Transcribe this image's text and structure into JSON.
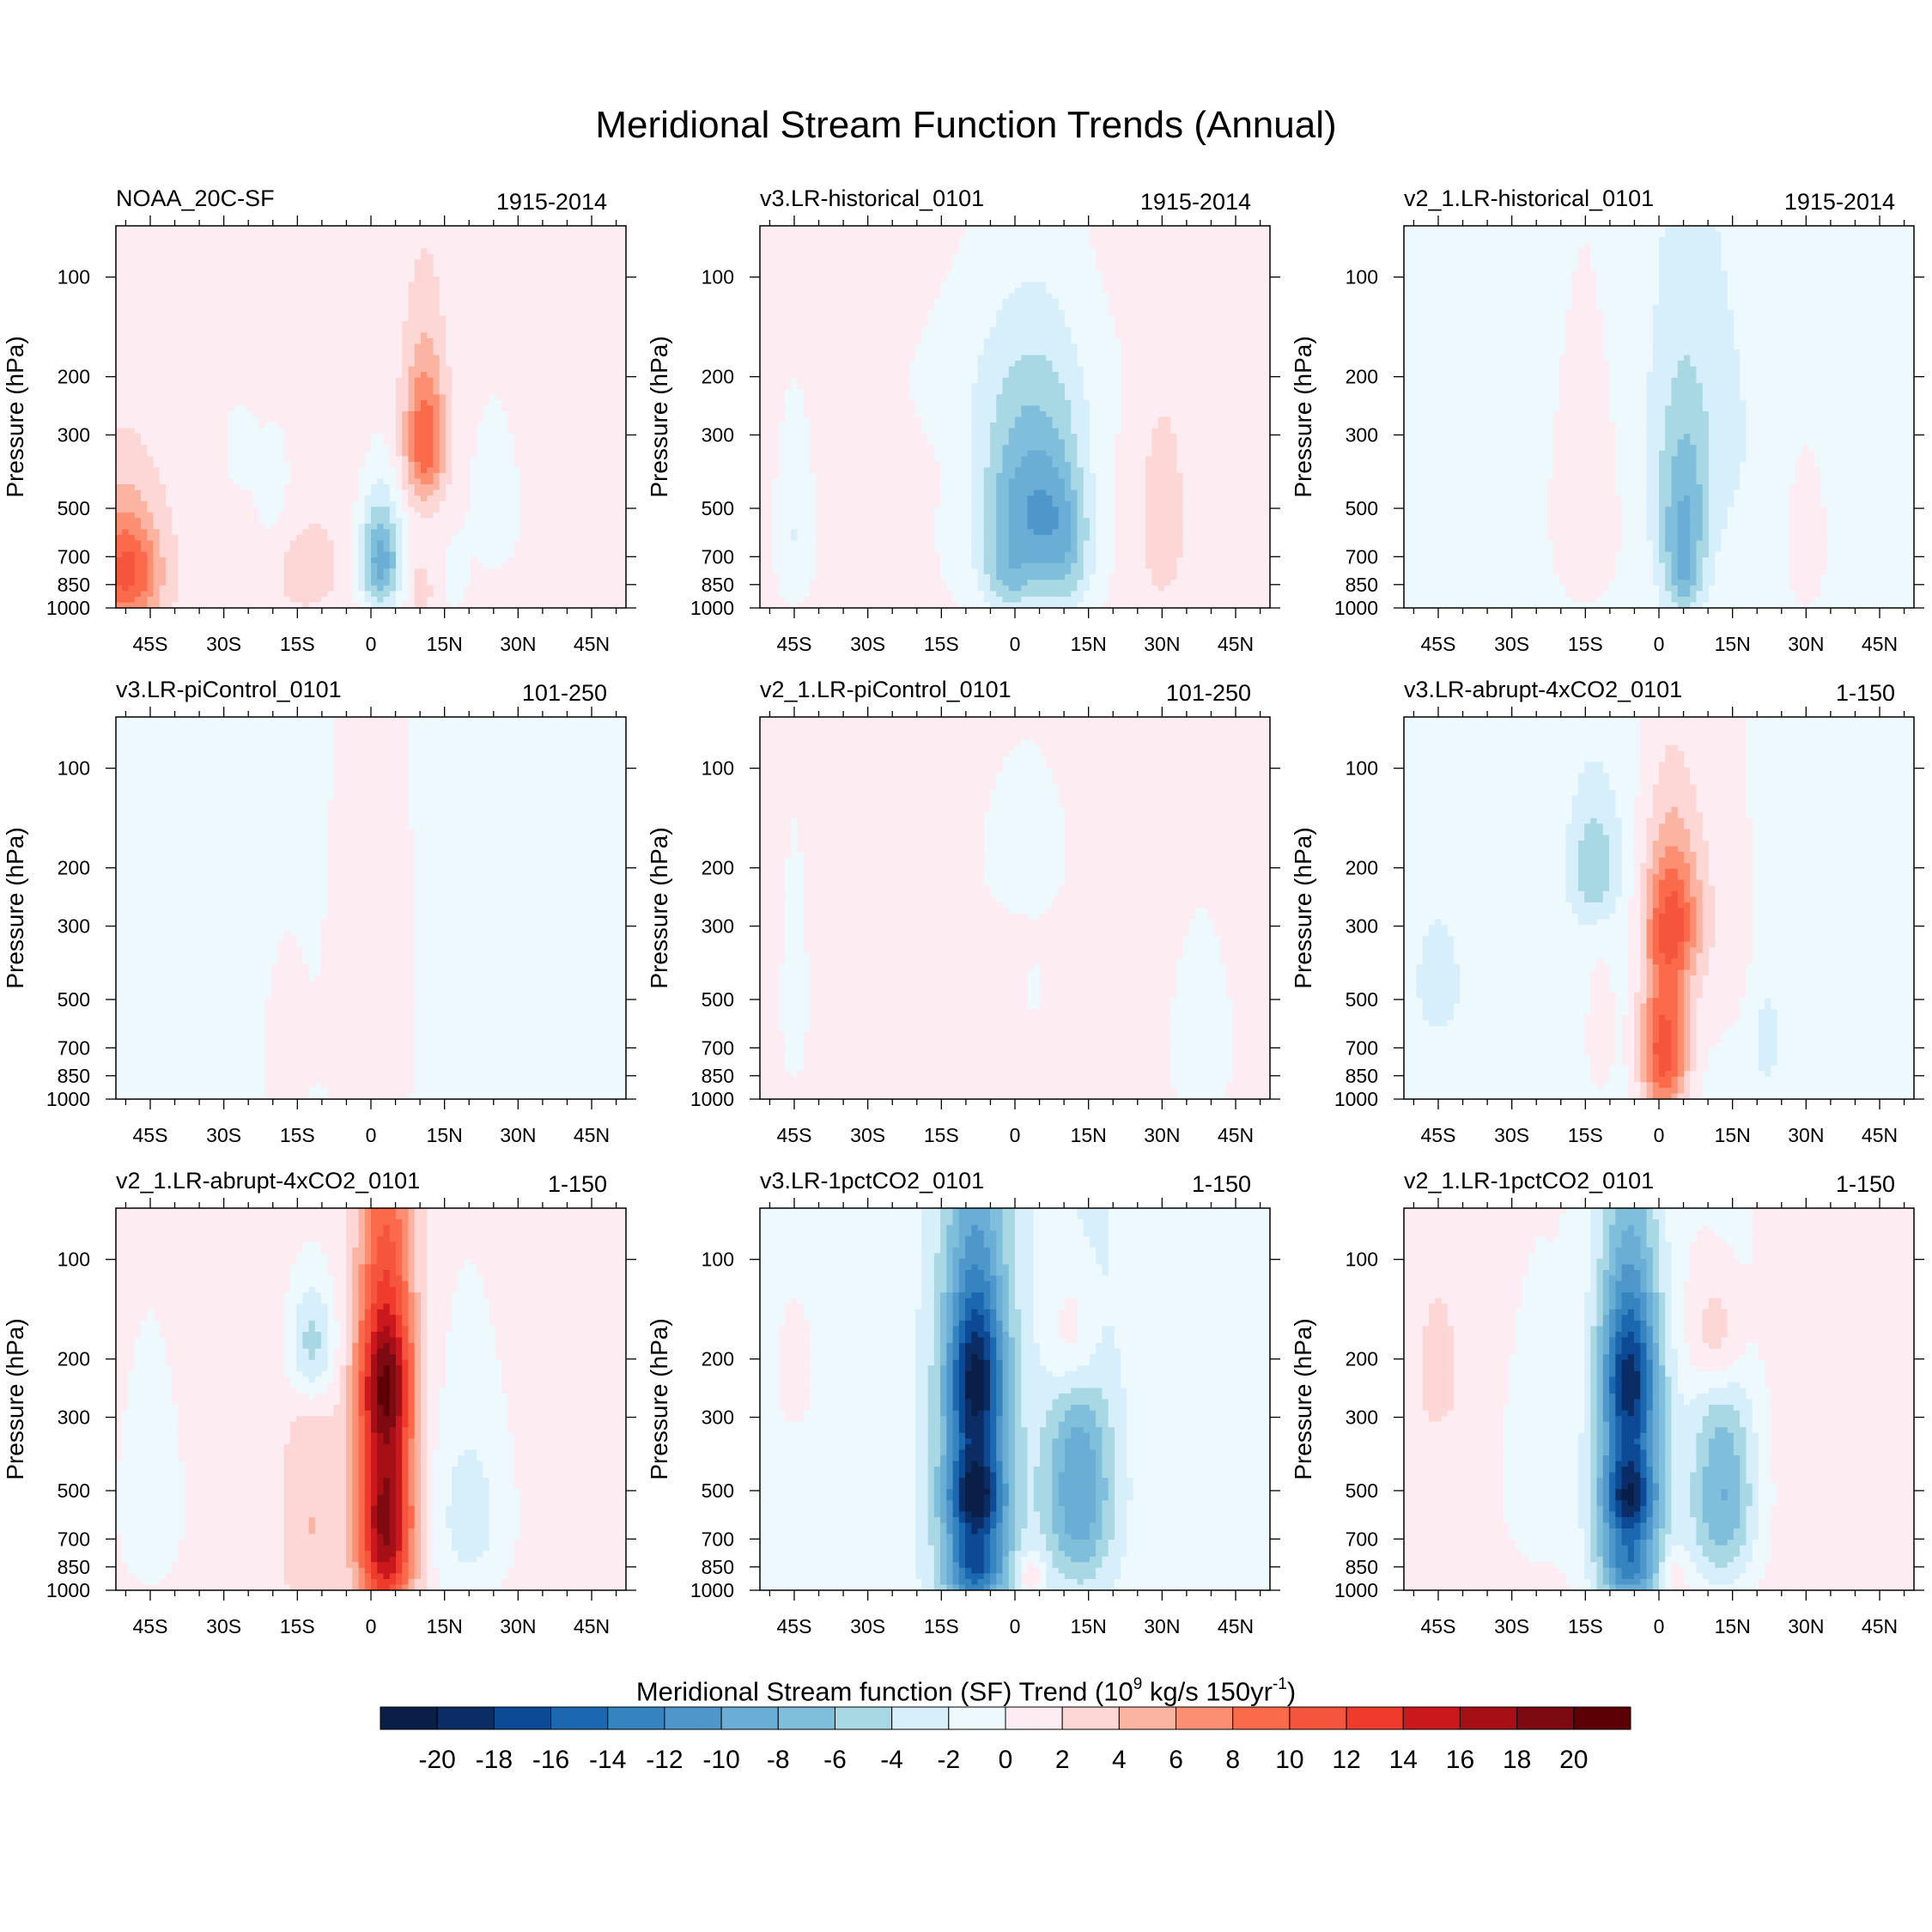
{
  "figure_title": "Meridional Stream Function Trends (Annual)",
  "colorbar": {
    "title_main": "Meridional Stream function (SF) Trend (10",
    "title_exp1": "9",
    "title_mid": " kg/s 150yr",
    "title_exp2": "-1",
    "title_end": ")",
    "labels": [
      "-20",
      "-18",
      "-16",
      "-14",
      "-12",
      "-10",
      "-8",
      "-6",
      "-4",
      "-2",
      "0",
      "2",
      "4",
      "6",
      "8",
      "10",
      "12",
      "14",
      "16",
      "18",
      "20"
    ],
    "colors": [
      "#0a1f47",
      "#0c2c66",
      "#0d4a96",
      "#1c68b0",
      "#3584c0",
      "#4f97cb",
      "#6aaed5",
      "#80bfdb",
      "#a8d8e3",
      "#d6effa",
      "#eef9fd",
      "#fdecf1",
      "#fdd7d5",
      "#fcb4a2",
      "#fc8f72",
      "#fb6a4a",
      "#f5553c",
      "#ef3b2c",
      "#cb181d",
      "#a50f15",
      "#7d0a10",
      "#5c0006"
    ]
  },
  "chart_data": [
    {
      "type": "heatmap",
      "title": "NOAA_20C-SF",
      "period": "1915-2014",
      "ylabel": "Pressure (hPa)",
      "x_ticks": [
        "45S",
        "30S",
        "15S",
        "0",
        "15N",
        "30N",
        "45N"
      ],
      "y_ticks": [
        "100",
        "200",
        "300",
        "500",
        "700",
        "850",
        "1000"
      ],
      "bg": "pos",
      "features": [
        {
          "lat": -50,
          "p": 780,
          "amp": 10,
          "wlat": 5,
          "wp": 230
        },
        {
          "lat": 2,
          "p": 720,
          "amp": -10,
          "wlat": 3,
          "wp": 200
        },
        {
          "lat": 11,
          "p": 310,
          "amp": 9,
          "wlat": 3,
          "wp": 110
        },
        {
          "lat": -13,
          "p": 760,
          "amp": 3,
          "wlat": 4,
          "wp": 150
        },
        {
          "lat": 10,
          "p": 880,
          "amp": 3,
          "wlat": 1.5,
          "wp": 100
        },
        {
          "lat": 17,
          "p": 820,
          "amp": -2.5,
          "wlat": 1.5,
          "wp": 120
        },
        {
          "lat": -27,
          "p": 330,
          "amp": -2.5,
          "wlat": 2,
          "wp": 60
        },
        {
          "lat": -20,
          "p": 450,
          "amp": -1.5,
          "wlat": 4,
          "wp": 200
        },
        {
          "lat": 25,
          "p": 500,
          "amp": -1.5,
          "wlat": 6,
          "wp": 300
        }
      ]
    },
    {
      "type": "heatmap",
      "title": "v3.LR-historical_0101",
      "period": "1915-2014",
      "ylabel": "Pressure (hPa)",
      "x_ticks": [
        "45S",
        "30S",
        "15S",
        "0",
        "15N",
        "30N",
        "45N"
      ],
      "y_ticks": [
        "100",
        "200",
        "300",
        "500",
        "700",
        "850",
        "1000"
      ],
      "bg": "pos",
      "features": [
        {
          "lat": 3,
          "p": 470,
          "amp": -9,
          "wlat": 7,
          "wp": 200
        },
        {
          "lat": -1,
          "p": 820,
          "amp": -5,
          "wlat": 4,
          "wp": 150
        },
        {
          "lat": 10,
          "p": 720,
          "amp": -5,
          "wlat": 4,
          "wp": 250
        },
        {
          "lat": -45,
          "p": 600,
          "amp": -3,
          "wlat": 3,
          "wp": 260
        },
        {
          "lat": 30,
          "p": 550,
          "amp": 2.8,
          "wlat": 3,
          "wp": 250
        },
        {
          "lat": 0,
          "p": 200,
          "amp": -1.5,
          "wlat": 18,
          "wp": 90
        },
        {
          "lat": 0,
          "p": 700,
          "amp": -1.5,
          "wlat": 15,
          "wp": 400
        }
      ]
    },
    {
      "type": "heatmap",
      "title": "v2_1.LR-historical_0101",
      "period": "1915-2014",
      "ylabel": "Pressure (hPa)",
      "x_ticks": [
        "45S",
        "30S",
        "15S",
        "0",
        "15N",
        "30N",
        "45N"
      ],
      "y_ticks": [
        "100",
        "200",
        "300",
        "500",
        "700",
        "850",
        "1000"
      ],
      "bg": "neg",
      "features": [
        {
          "lat": 5,
          "p": 560,
          "amp": -6,
          "wlat": 3.5,
          "wp": 230
        },
        {
          "lat": 5,
          "p": 820,
          "amp": -4,
          "wlat": 2.5,
          "wp": 150
        },
        {
          "lat": -15,
          "p": 520,
          "amp": 3,
          "wlat": 5,
          "wp": 300
        },
        {
          "lat": 30,
          "p": 650,
          "amp": 2.5,
          "wlat": 3,
          "wp": 250
        },
        {
          "lat": 8,
          "p": 300,
          "amp": -2,
          "wlat": 8,
          "wp": 200
        }
      ]
    },
    {
      "type": "heatmap",
      "title": "v3.LR-piControl_0101",
      "period": "101-250",
      "ylabel": "Pressure (hPa)",
      "x_ticks": [
        "45S",
        "30S",
        "15S",
        "0",
        "15N",
        "30N",
        "45N"
      ],
      "y_ticks": [
        "100",
        "200",
        "300",
        "500",
        "700",
        "850",
        "1000"
      ],
      "bg": "neg",
      "features": [
        {
          "lat": 0,
          "p": 550,
          "amp": 2,
          "wlat": 8,
          "wp": 700
        },
        {
          "lat": -18,
          "p": 750,
          "amp": 1.5,
          "wlat": 4,
          "wp": 400
        }
      ]
    },
    {
      "type": "heatmap",
      "title": "v2_1.LR-piControl_0101",
      "period": "101-250",
      "ylabel": "Pressure (hPa)",
      "x_ticks": [
        "45S",
        "30S",
        "15S",
        "0",
        "15N",
        "30N",
        "45N"
      ],
      "y_ticks": [
        "100",
        "200",
        "300",
        "500",
        "700",
        "850",
        "1000"
      ],
      "bg": "pos",
      "features": [
        {
          "lat": 2,
          "p": 180,
          "amp": -1.8,
          "wlat": 8,
          "wp": 90
        },
        {
          "lat": 38,
          "p": 700,
          "amp": -1.8,
          "wlat": 6,
          "wp": 400
        },
        {
          "lat": -45,
          "p": 500,
          "amp": -1.5,
          "wlat": 3,
          "wp": 400
        },
        {
          "lat": 4,
          "p": 470,
          "amp": -1.5,
          "wlat": 1.5,
          "wp": 80
        }
      ]
    },
    {
      "type": "heatmap",
      "title": "v3.LR-abrupt-4xCO2_0101",
      "period": "1-150",
      "ylabel": "Pressure (hPa)",
      "x_ticks": [
        "45S",
        "30S",
        "15S",
        "0",
        "15N",
        "30N",
        "45N"
      ],
      "y_ticks": [
        "100",
        "200",
        "300",
        "500",
        "700",
        "850",
        "1000"
      ],
      "bg": "neg",
      "features": [
        {
          "lat": 1,
          "p": 720,
          "amp": 12,
          "wlat": 3.5,
          "wp": 280
        },
        {
          "lat": 3,
          "p": 280,
          "amp": 8,
          "wlat": 4,
          "wp": 100
        },
        {
          "lat": -13,
          "p": 200,
          "amp": -5,
          "wlat": 3.5,
          "wp": 60
        },
        {
          "lat": -12,
          "p": 650,
          "amp": 2.5,
          "wlat": 2,
          "wp": 200
        },
        {
          "lat": -45,
          "p": 450,
          "amp": -2.5,
          "wlat": 3,
          "wp": 120
        },
        {
          "lat": 22,
          "p": 650,
          "amp": -2.5,
          "wlat": 2,
          "wp": 150
        },
        {
          "lat": 10,
          "p": 300,
          "amp": 2,
          "wlat": 8,
          "wp": 300
        }
      ]
    },
    {
      "type": "heatmap",
      "title": "v2_1.LR-abrupt-4xCO2_0101",
      "period": "1-150",
      "ylabel": "Pressure (hPa)",
      "x_ticks": [
        "45S",
        "30S",
        "15S",
        "0",
        "15N",
        "30N",
        "45N"
      ],
      "y_ticks": [
        "100",
        "200",
        "300",
        "500",
        "700",
        "850",
        "1000"
      ],
      "bg": "pos",
      "features": [
        {
          "lat": 3,
          "p": 600,
          "amp": 18,
          "wlat": 4,
          "wp": 400
        },
        {
          "lat": 3,
          "p": 230,
          "amp": 8,
          "wlat": 4,
          "wp": 80
        },
        {
          "lat": -12,
          "p": 180,
          "amp": -7,
          "wlat": 3.5,
          "wp": 60
        },
        {
          "lat": 20,
          "p": 600,
          "amp": -4,
          "wlat": 6,
          "wp": 300
        },
        {
          "lat": -12,
          "p": 650,
          "amp": 3,
          "wlat": 4,
          "wp": 400
        },
        {
          "lat": -45,
          "p": 550,
          "amp": -2.5,
          "wlat": 5,
          "wp": 300
        }
      ]
    },
    {
      "type": "heatmap",
      "title": "v3.LR-1pctCO2_0101",
      "period": "1-150",
      "ylabel": "Pressure (hPa)",
      "x_ticks": [
        "45S",
        "30S",
        "15S",
        "0",
        "15N",
        "30N",
        "45N"
      ],
      "y_ticks": [
        "100",
        "200",
        "300",
        "500",
        "700",
        "850",
        "1000"
      ],
      "bg": "neg",
      "features": [
        {
          "lat": -8,
          "p": 220,
          "amp": -13,
          "wlat": 4,
          "wp": 90
        },
        {
          "lat": -8,
          "p": 500,
          "amp": -13,
          "wlat": 4,
          "wp": 120
        },
        {
          "lat": -8,
          "p": 850,
          "amp": -9,
          "wlat": 4,
          "wp": 150
        },
        {
          "lat": 13,
          "p": 500,
          "amp": -9,
          "wlat": 5,
          "wp": 300
        },
        {
          "lat": -8,
          "p": 550,
          "amp": -8,
          "wlat": 6,
          "wp": 500
        },
        {
          "lat": 12,
          "p": 170,
          "amp": 6,
          "wlat": 4,
          "wp": 70
        },
        {
          "lat": 3,
          "p": 900,
          "amp": 4,
          "wlat": 2,
          "wp": 100
        },
        {
          "lat": -45,
          "p": 220,
          "amp": 1.5,
          "wlat": 4,
          "wp": 100
        }
      ]
    },
    {
      "type": "heatmap",
      "title": "v2_1.LR-1pctCO2_0101",
      "period": "1-150",
      "ylabel": "Pressure (hPa)",
      "x_ticks": [
        "45S",
        "30S",
        "15S",
        "0",
        "15N",
        "30N",
        "45N"
      ],
      "y_ticks": [
        "100",
        "200",
        "300",
        "500",
        "700",
        "850",
        "1000"
      ],
      "bg": "pos",
      "features": [
        {
          "lat": -6,
          "p": 220,
          "amp": -13,
          "wlat": 4,
          "wp": 90
        },
        {
          "lat": -6,
          "p": 500,
          "amp": -13,
          "wlat": 4,
          "wp": 120
        },
        {
          "lat": -6,
          "p": 850,
          "amp": -8,
          "wlat": 4,
          "wp": 150
        },
        {
          "lat": 13,
          "p": 520,
          "amp": -9,
          "wlat": 5,
          "wp": 300
        },
        {
          "lat": -6,
          "p": 550,
          "amp": -8,
          "wlat": 6,
          "wp": 500
        },
        {
          "lat": -25,
          "p": 450,
          "amp": -2,
          "wlat": 6,
          "wp": 300
        },
        {
          "lat": 12,
          "p": 170,
          "amp": 6,
          "wlat": 4,
          "wp": 60
        },
        {
          "lat": 3,
          "p": 900,
          "amp": 3,
          "wlat": 2,
          "wp": 100
        },
        {
          "lat": -45,
          "p": 220,
          "amp": 1.5,
          "wlat": 4,
          "wp": 100
        }
      ]
    }
  ]
}
